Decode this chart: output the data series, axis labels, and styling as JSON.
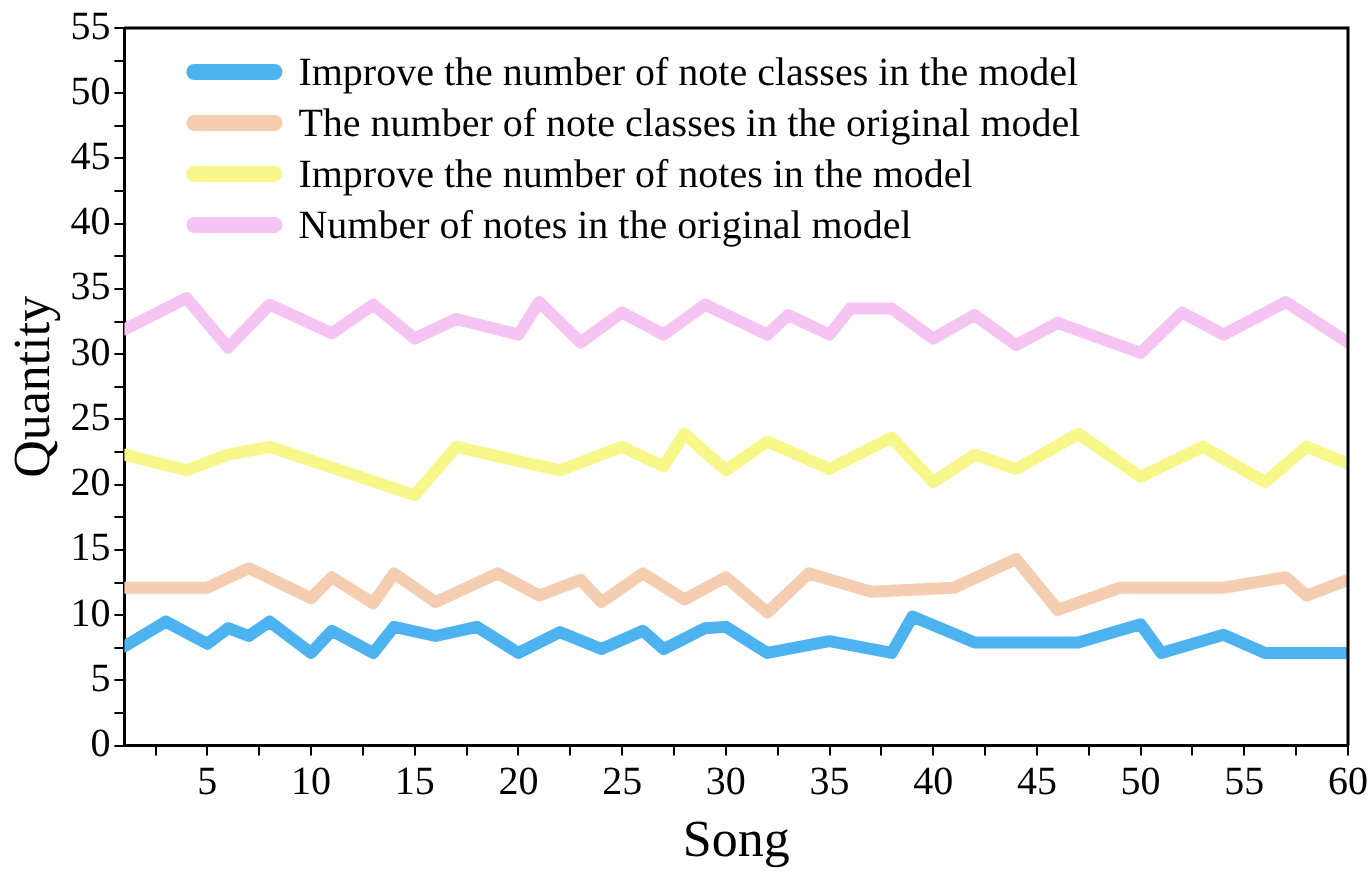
{
  "chart_data": {
    "type": "line",
    "xlabel": "Song",
    "ylabel": "Quantity",
    "xlim": [
      1,
      60
    ],
    "ylim": [
      0,
      55
    ],
    "xticks": [
      {
        "value": 2.5,
        "label": null
      },
      5,
      {
        "value": 7.5,
        "label": null
      },
      10,
      {
        "value": 12.5,
        "label": null
      },
      15,
      {
        "value": 17.5,
        "label": null
      },
      20,
      {
        "value": 22.5,
        "label": null
      },
      25,
      {
        "value": 27.5,
        "label": null
      },
      30,
      {
        "value": 32.5,
        "label": null
      },
      35,
      {
        "value": 37.5,
        "label": null
      },
      40,
      {
        "value": 42.5,
        "label": null
      },
      45,
      {
        "value": 47.5,
        "label": null
      },
      50,
      {
        "value": 52.5,
        "label": null
      },
      55,
      {
        "value": 57.5,
        "label": null
      },
      60
    ],
    "yticks": [
      0,
      {
        "value": 2.5,
        "label": null
      },
      5,
      {
        "value": 7.5,
        "label": null
      },
      10,
      {
        "value": 12.5,
        "label": null
      },
      15,
      {
        "value": 17.5,
        "label": null
      },
      20,
      {
        "value": 22.5,
        "label": null
      },
      25,
      {
        "value": 27.5,
        "label": null
      },
      30,
      {
        "value": 32.5,
        "label": null
      },
      35,
      {
        "value": 37.5,
        "label": null
      },
      40,
      {
        "value": 42.5,
        "label": null
      },
      45,
      {
        "value": 47.5,
        "label": null
      },
      50,
      {
        "value": 52.5,
        "label": null
      },
      55
    ],
    "grid": false,
    "legend": "top left",
    "marker": "none",
    "line_style": "solid",
    "series": [
      {
        "name": "Improve the number of note classes in the model",
        "color": "#4db3f0",
        "x": [
          1,
          3,
          5,
          6,
          7,
          8,
          10,
          11,
          13,
          14,
          16,
          18,
          20,
          22,
          24,
          26,
          27,
          29,
          30,
          32,
          35,
          38,
          39,
          42,
          47,
          50,
          51,
          54,
          56,
          60
        ],
        "values": [
          7.6,
          9.5,
          7.8,
          9,
          8.4,
          9.5,
          7.1,
          8.8,
          7.1,
          9.1,
          8.4,
          9.1,
          7.1,
          8.7,
          7.4,
          8.8,
          7.4,
          9,
          9.1,
          7.1,
          8,
          7.1,
          9.9,
          7.9,
          7.9,
          9.3,
          7.1,
          8.5,
          7.1,
          7.1
        ]
      },
      {
        "name": "The number of note classes in the original model",
        "color": "#f5cdb0",
        "x": [
          1,
          5,
          7,
          10,
          11,
          13,
          14,
          16,
          19,
          21,
          23,
          24,
          26,
          28,
          30,
          32,
          34,
          37,
          41,
          44,
          46,
          49,
          54,
          57,
          58,
          60
        ],
        "values": [
          12.1,
          12.1,
          13.6,
          11.3,
          12.9,
          10.9,
          13.2,
          11,
          13.2,
          11.5,
          12.7,
          11,
          13.2,
          11.2,
          12.9,
          10.2,
          13.2,
          11.8,
          12.1,
          14.3,
          10.4,
          12.1,
          12.1,
          12.9,
          11.5,
          12.7
        ]
      },
      {
        "name": "Improve the number of notes in the model",
        "color": "#f8f88a",
        "x": [
          1,
          4,
          6,
          8,
          15,
          17,
          22,
          25,
          27,
          28,
          30,
          32,
          35,
          38,
          40,
          42,
          44,
          47,
          50,
          53,
          56,
          58,
          60
        ],
        "values": [
          22.3,
          21.1,
          22.3,
          22.9,
          19.2,
          22.9,
          21.1,
          22.9,
          21.4,
          23.9,
          21.1,
          23.3,
          21.2,
          23.6,
          20.2,
          22.3,
          21.2,
          23.9,
          20.6,
          22.9,
          20.2,
          22.9,
          21.6
        ]
      },
      {
        "name": "Number of notes in the original model",
        "color": "#f5c4f2",
        "x": [
          1,
          4,
          6,
          8,
          11,
          13,
          15,
          17,
          20,
          21,
          23,
          25,
          27,
          29,
          32,
          33,
          35,
          36,
          38,
          40,
          42,
          44,
          46,
          50,
          52,
          54,
          57,
          60
        ],
        "values": [
          31.9,
          34.3,
          30.5,
          33.8,
          31.6,
          33.8,
          31.2,
          32.7,
          31.5,
          34,
          30.9,
          33.2,
          31.5,
          33.8,
          31.5,
          33,
          31.5,
          33.5,
          33.5,
          31.2,
          33,
          30.7,
          32.4,
          30.1,
          33.2,
          31.5,
          34,
          30.9
        ]
      }
    ]
  }
}
